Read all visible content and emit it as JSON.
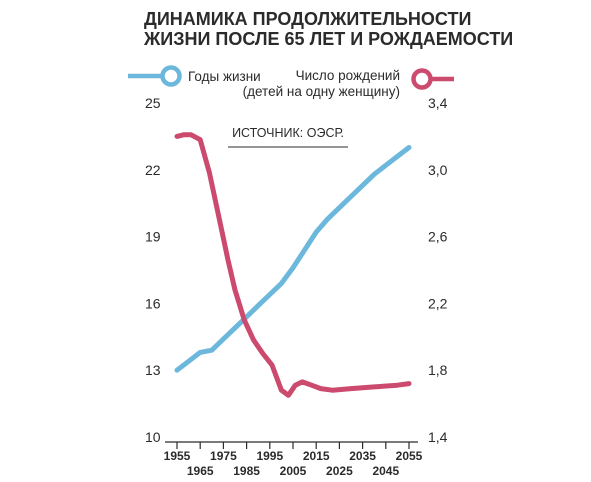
{
  "title_line1": "ДИНАМИКА ПРОДОЛЖИТЕЛЬНОСТИ",
  "title_line2": "ЖИЗНИ ПОСЛЕ 65 ЛЕТ И РОЖДАЕМОСТИ",
  "source": "ИСТОЧНИК: ОЭСР.",
  "legend": {
    "left_label": "Годы жизни",
    "right_label_line1": "Число рождений",
    "right_label_line2": "(детей на одну женщину)"
  },
  "colors": {
    "life": "#6cb8dc",
    "births": "#cc4a6e",
    "text": "#2b2b2b",
    "axis": "#2b2b2b"
  },
  "chart_data": {
    "type": "line",
    "x_ticks_top": [
      "1955",
      "1975",
      "1995",
      "2015",
      "2035",
      "2055"
    ],
    "x_ticks_bottom": [
      "1965",
      "1985",
      "2005",
      "2025",
      "2045"
    ],
    "left_axis": {
      "ticks": [
        "25",
        "22",
        "19",
        "16",
        "13",
        "10"
      ],
      "ylim": [
        10,
        25
      ]
    },
    "right_axis": {
      "ticks": [
        "3,4",
        "3,0",
        "2,6",
        "2,2",
        "1,8",
        "1,4"
      ],
      "ylim": [
        1.4,
        3.4
      ]
    },
    "xlim": [
      1955,
      2055
    ],
    "series": [
      {
        "name": "Годы жизни",
        "axis": "left",
        "x": [
          1955,
          1960,
          1965,
          1970,
          1975,
          1980,
          1985,
          1990,
          1995,
          2000,
          2005,
          2010,
          2015,
          2020,
          2025,
          2030,
          2035,
          2040,
          2045,
          2050,
          2055
        ],
        "y": [
          13.0,
          13.4,
          13.8,
          13.9,
          14.4,
          14.9,
          15.4,
          15.9,
          16.4,
          16.9,
          17.6,
          18.4,
          19.2,
          19.8,
          20.3,
          20.8,
          21.3,
          21.8,
          22.2,
          22.6,
          23.0
        ]
      },
      {
        "name": "Число рождений (детей на одну женщину)",
        "axis": "right",
        "x": [
          1955,
          1958,
          1961,
          1965,
          1969,
          1973,
          1977,
          1980,
          1984,
          1988,
          1992,
          1996,
          2000,
          2003,
          2006,
          2009,
          2013,
          2017,
          2022,
          2030,
          2040,
          2050,
          2055
        ],
        "y": [
          3.2,
          3.21,
          3.21,
          3.18,
          2.98,
          2.72,
          2.46,
          2.28,
          2.1,
          1.98,
          1.9,
          1.83,
          1.68,
          1.65,
          1.71,
          1.73,
          1.71,
          1.69,
          1.68,
          1.69,
          1.7,
          1.71,
          1.72
        ]
      }
    ]
  }
}
